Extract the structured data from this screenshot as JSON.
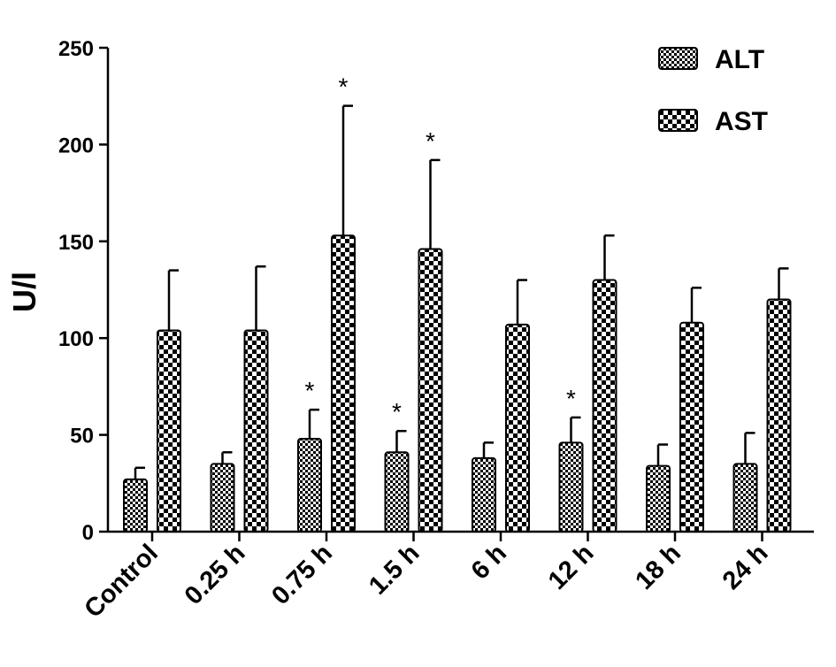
{
  "chart_data": {
    "type": "bar",
    "title": "",
    "xlabel": "",
    "ylabel": "U/l",
    "ylim": [
      0,
      250
    ],
    "yticks": [
      0,
      50,
      100,
      150,
      200,
      250
    ],
    "grid": false,
    "legend_position": "top-right",
    "categories": [
      "Control",
      "0.25 h",
      "0.75 h",
      "1.5 h",
      "6 h",
      "12 h",
      "18 h",
      "24 h"
    ],
    "series": [
      {
        "name": "ALT",
        "pattern": "fine-checker",
        "values": [
          27,
          35,
          48,
          41,
          38,
          46,
          34,
          35
        ],
        "errors": [
          6,
          6,
          15,
          11,
          8,
          13,
          11,
          16
        ],
        "significant": [
          false,
          false,
          true,
          true,
          false,
          true,
          false,
          false
        ]
      },
      {
        "name": "AST",
        "pattern": "coarse-checker",
        "values": [
          104,
          104,
          153,
          146,
          107,
          130,
          108,
          120
        ],
        "errors": [
          31,
          33,
          67,
          46,
          23,
          23,
          18,
          16
        ],
        "significant": [
          false,
          false,
          true,
          true,
          false,
          false,
          false,
          false
        ]
      }
    ],
    "significance_marker": "*",
    "colors": {
      "bar_stroke": "#000000",
      "pattern_dark": "#000000",
      "pattern_light": "#ffffff"
    }
  }
}
